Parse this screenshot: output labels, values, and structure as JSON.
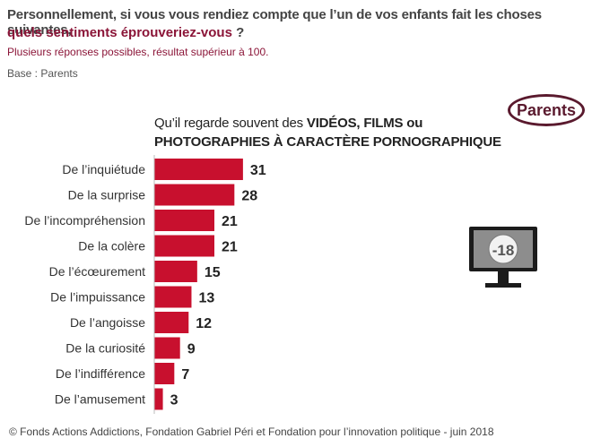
{
  "header": {
    "question_line1": "Personnellement, si vous vous rendiez compte que l’un de vos enfants fait les choses suivantes,",
    "question_line2_highlight": "quels sentiments éprouveriez-vous",
    "question_line2_tail": " ?",
    "note": "Plusieurs réponses possibles, résultat supérieur à 100.",
    "base": "Base : Parents"
  },
  "badge": {
    "label": "Parents"
  },
  "monitor": {
    "label": "-18"
  },
  "chart_data": {
    "type": "bar",
    "orientation": "horizontal",
    "title_part1": "Qu’il regarde souvent des ",
    "title_part1_bold": "VIDÉOS, FILMS ou",
    "title_part2_bold": "PHOTOGRAPHIES À CARACTÈRE PORNOGRAPHIQUE",
    "categories": [
      "De l’inquiétude",
      "De la surprise",
      "De l’incompréhension",
      "De la colère",
      "De l’écœurement",
      "De l’impuissance",
      "De l’angoisse",
      "De la curiosité",
      "De l’indifférence",
      "De l’amusement"
    ],
    "values": [
      31,
      28,
      21,
      21,
      15,
      13,
      12,
      9,
      7,
      3
    ],
    "bar_color": "#c8102e",
    "legend": "none",
    "grid": false
  },
  "footer": "© Fonds Actions Addictions, Fondation Gabriel Péri et Fondation pour l’innovation politique - juin 2018"
}
